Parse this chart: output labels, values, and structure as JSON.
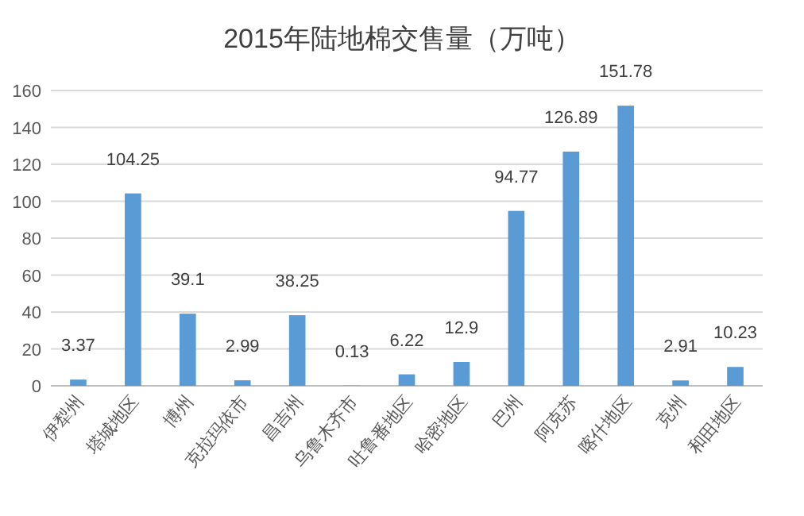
{
  "chart_data": {
    "type": "bar",
    "title": "2015年陆地棉交售量（万吨）",
    "categories": [
      "伊犁州",
      "塔城地区",
      "博州",
      "克拉玛依市",
      "昌吉州",
      "乌鲁木齐市",
      "吐鲁番地区",
      "哈密地区",
      "巴州",
      "阿克苏",
      "喀什地区",
      "克州",
      "和田地区"
    ],
    "values": [
      3.37,
      104.25,
      39.1,
      2.99,
      38.25,
      0.13,
      6.22,
      12.9,
      94.77,
      126.89,
      151.78,
      2.91,
      10.23
    ],
    "color": "#5b9bd5",
    "ylim": [
      0,
      160
    ],
    "yticks": [
      0,
      20,
      40,
      60,
      80,
      100,
      120,
      140,
      160
    ],
    "grid": "y",
    "data_labels": true
  }
}
